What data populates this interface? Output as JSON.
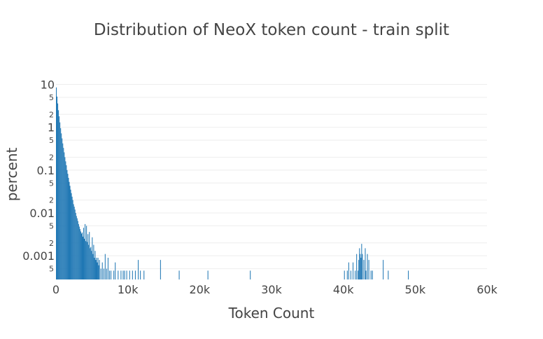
{
  "chart_data": {
    "type": "bar",
    "title": "Distribution of NeoX token count - train split",
    "xlabel": "Token Count",
    "ylabel": "percent",
    "x_scale": "linear",
    "y_scale": "log",
    "xlim": [
      0,
      60000
    ],
    "ylim": [
      0.00028,
      11
    ],
    "x_ticks": [
      {
        "value": 0,
        "label": "0"
      },
      {
        "value": 10000,
        "label": "10k"
      },
      {
        "value": 20000,
        "label": "20k"
      },
      {
        "value": 30000,
        "label": "30k"
      },
      {
        "value": 40000,
        "label": "40k"
      },
      {
        "value": 50000,
        "label": "50k"
      },
      {
        "value": 60000,
        "label": "60k"
      }
    ],
    "y_major_ticks": [
      {
        "value": 10,
        "label": "10"
      },
      {
        "value": 1,
        "label": "1"
      },
      {
        "value": 0.1,
        "label": "0.1"
      },
      {
        "value": 0.01,
        "label": "0.01"
      },
      {
        "value": 0.001,
        "label": "0.001"
      }
    ],
    "y_minor_ticks": [
      {
        "value": 5,
        "label": "5"
      },
      {
        "value": 2,
        "label": "2"
      },
      {
        "value": 0.5,
        "label": "5"
      },
      {
        "value": 0.2,
        "label": "2"
      },
      {
        "value": 0.05,
        "label": "5"
      },
      {
        "value": 0.02,
        "label": "2"
      },
      {
        "value": 0.005,
        "label": "5"
      },
      {
        "value": 0.002,
        "label": "2"
      },
      {
        "value": 0.0005,
        "label": "5"
      }
    ],
    "grid": true,
    "legend": "none",
    "bar_color": "#1f77b4",
    "bins": {
      "width": 100,
      "x": [
        0,
        100,
        200,
        300,
        400,
        500,
        600,
        700,
        800,
        900,
        1000,
        1100,
        1200,
        1300,
        1400,
        1500,
        1600,
        1700,
        1800,
        1900,
        2000,
        2100,
        2200,
        2300,
        2400,
        2500,
        2600,
        2700,
        2800,
        2900,
        3000,
        3100,
        3200,
        3300,
        3400,
        3500,
        3600,
        3700,
        3800,
        3900,
        4000,
        4100,
        4200,
        4300,
        4400,
        4500,
        4600,
        4700,
        4800,
        4900,
        5000,
        5100,
        5200,
        5300,
        5400,
        5500,
        5600,
        5700,
        5800,
        5900,
        6000,
        6200,
        6400,
        6600,
        6800,
        7000,
        7200,
        7400,
        7600,
        8000,
        8200,
        8600,
        9000,
        9300,
        9500,
        9800,
        10200,
        10600,
        11000,
        11400,
        11700,
        12200,
        14500,
        17100,
        21100,
        27000,
        40100,
        40500,
        40700,
        41000,
        41300,
        41600,
        41800,
        42000,
        42100,
        42200,
        42300,
        42400,
        42500,
        42600,
        42800,
        43000,
        43100,
        43300,
        43500,
        43800,
        44000,
        45500,
        46200,
        49000
      ],
      "y": [
        8.5,
        5.2,
        3.6,
        2.5,
        1.8,
        1.3,
        0.95,
        0.72,
        0.55,
        0.42,
        0.33,
        0.26,
        0.2,
        0.16,
        0.13,
        0.1,
        0.082,
        0.066,
        0.053,
        0.043,
        0.035,
        0.029,
        0.024,
        0.02,
        0.016,
        0.014,
        0.012,
        0.01,
        0.0085,
        0.0075,
        0.0065,
        0.0055,
        0.0048,
        0.0042,
        0.0037,
        0.0033,
        0.0035,
        0.0028,
        0.0045,
        0.0025,
        0.0055,
        0.0022,
        0.005,
        0.0021,
        0.0032,
        0.0018,
        0.0036,
        0.0015,
        0.0016,
        0.0013,
        0.0027,
        0.0011,
        0.0018,
        0.0009,
        0.0013,
        0.0008,
        0.0009,
        0.0007,
        0.0009,
        0.0006,
        0.0008,
        0.0005,
        0.0007,
        0.0005,
        0.0011,
        0.0005,
        0.0009,
        0.00045,
        0.00045,
        0.00045,
        0.0007,
        0.00045,
        0.00045,
        0.00045,
        0.00045,
        0.00045,
        0.00045,
        0.00045,
        0.00045,
        0.0008,
        0.00045,
        0.00045,
        0.0008,
        0.00045,
        0.00045,
        0.00045,
        0.00045,
        0.00045,
        0.0007,
        0.00045,
        0.0007,
        0.00045,
        0.0011,
        0.00045,
        0.0008,
        0.0015,
        0.0011,
        0.0009,
        0.0019,
        0.0011,
        0.0008,
        0.0015,
        0.00045,
        0.0011,
        0.0008,
        0.00045,
        0.00045,
        0.0008,
        0.00045,
        0.00045
      ]
    }
  }
}
